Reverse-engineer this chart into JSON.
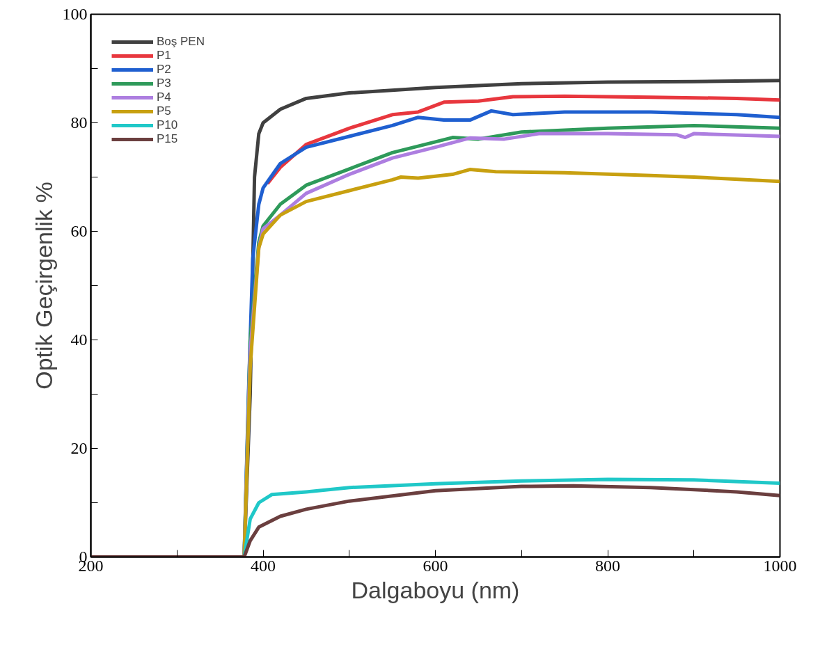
{
  "chart_data": {
    "type": "line",
    "xlabel": "Dalgaboyu (nm)",
    "ylabel": "Optik Geçirgenlik %",
    "xlim": [
      200,
      1000
    ],
    "ylim": [
      0,
      100
    ],
    "xticks": [
      200,
      {
        "value": 300,
        "label": null
      },
      400,
      {
        "value": 500,
        "label": null
      },
      600,
      {
        "value": 700,
        "label": null
      },
      800,
      {
        "value": 900,
        "label": null
      },
      1000
    ],
    "yticks": [
      0,
      {
        "value": 10,
        "label": null
      },
      20,
      {
        "value": 30,
        "label": null
      },
      40,
      {
        "value": 50,
        "label": null
      },
      60,
      {
        "value": 70,
        "label": null
      },
      80,
      {
        "value": 90,
        "label": null
      },
      100
    ],
    "grid": false,
    "legend": "top left",
    "line_style": "solid",
    "series": [
      {
        "name": "Boş PEN",
        "color": "#404040",
        "x": [
          200,
          378,
          385,
          390,
          395,
          400,
          420,
          450,
          500,
          600,
          700,
          800,
          900,
          1000
        ],
        "values": [
          0,
          0,
          30,
          70,
          78,
          80,
          82.5,
          84.5,
          85.5,
          86.5,
          87.2,
          87.5,
          87.6,
          87.8
        ]
      },
      {
        "name": "P1",
        "color": "#e8373e",
        "x": [
          405,
          420,
          450,
          500,
          550,
          580,
          610,
          650,
          690,
          750,
          850,
          950,
          1000
        ],
        "values": [
          68.8,
          71.8,
          76,
          79,
          81.5,
          82,
          83.8,
          84,
          84.8,
          84.9,
          84.7,
          84.5,
          84.2
        ]
      },
      {
        "name": "P2",
        "color": "#1f5fd0",
        "x": [
          200,
          378,
          383,
          388,
          395,
          400,
          420,
          450,
          500,
          550,
          580,
          610,
          640,
          665,
          690,
          750,
          850,
          950,
          1000
        ],
        "values": [
          0,
          0,
          30,
          55,
          65,
          68,
          72.5,
          75.5,
          77.5,
          79.5,
          81,
          80.5,
          80.5,
          82.2,
          81.5,
          82,
          82,
          81.5,
          81
        ]
      },
      {
        "name": "P3",
        "color": "#2e9a5a",
        "x": [
          200,
          378,
          385,
          395,
          400,
          420,
          450,
          500,
          550,
          600,
          620,
          650,
          700,
          800,
          900,
          1000
        ],
        "values": [
          0,
          0,
          40,
          58,
          61,
          65,
          68.5,
          71.5,
          74.5,
          76.5,
          77.3,
          77,
          78.3,
          79,
          79.5,
          79
        ]
      },
      {
        "name": "P4",
        "color": "#ad7ee0",
        "x": [
          200,
          378,
          385,
          395,
          400,
          420,
          450,
          500,
          550,
          600,
          640,
          680,
          720,
          800,
          880,
          890,
          900,
          1000
        ],
        "values": [
          0,
          0,
          38,
          57,
          60.5,
          63,
          67,
          70.5,
          73.5,
          75.5,
          77.2,
          77,
          78,
          78,
          77.8,
          77.3,
          78,
          77.5
        ]
      },
      {
        "name": "P5",
        "color": "#c8a010",
        "x": [
          200,
          378,
          385,
          395,
          400,
          420,
          450,
          500,
          550,
          560,
          580,
          620,
          640,
          670,
          750,
          850,
          900,
          1000
        ],
        "values": [
          0,
          0,
          35,
          57,
          59.5,
          63,
          65.5,
          67.5,
          69.5,
          70,
          69.8,
          70.5,
          71.4,
          71,
          70.8,
          70.3,
          70,
          69.2
        ]
      },
      {
        "name": "P10",
        "color": "#20c8c8",
        "x": [
          200,
          378,
          385,
          395,
          410,
          450,
          500,
          600,
          700,
          800,
          900,
          1000
        ],
        "values": [
          0,
          0,
          7,
          10,
          11.5,
          12,
          12.8,
          13.5,
          14,
          14.3,
          14.2,
          13.6
        ]
      },
      {
        "name": "P15",
        "color": "#6b3f3f",
        "x": [
          200,
          378,
          385,
          395,
          420,
          450,
          500,
          600,
          700,
          760,
          850,
          950,
          1000
        ],
        "values": [
          0,
          0,
          3,
          5.5,
          7.5,
          8.8,
          10.3,
          12.2,
          13,
          13.1,
          12.8,
          12,
          11.3
        ]
      }
    ]
  }
}
